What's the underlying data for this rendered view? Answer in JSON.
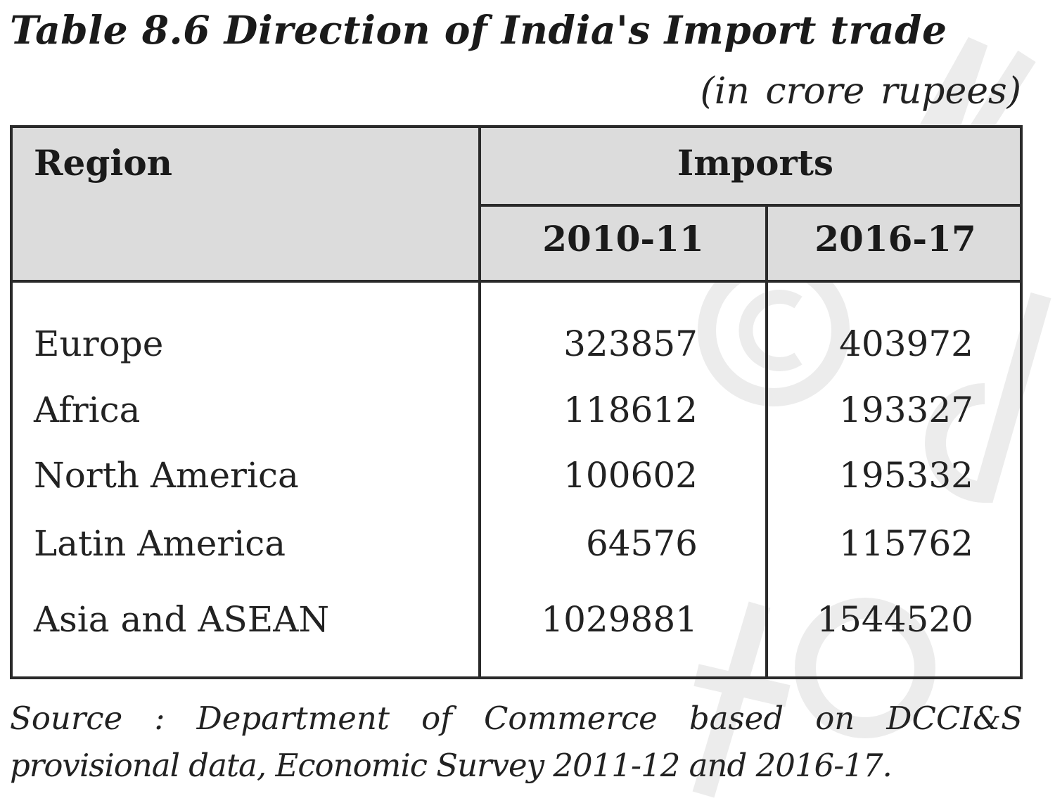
{
  "title": "Table 8.6 Direction of India's Import trade",
  "units": "(in crore rupees)",
  "table": {
    "header": {
      "region": "Region",
      "imports": "Imports",
      "years": [
        "2010-11",
        "2016-17"
      ]
    },
    "rows": [
      {
        "region": "Europe",
        "v1": "323857",
        "v2": "403972"
      },
      {
        "region": "Africa",
        "v1": "118612",
        "v2": "193327"
      },
      {
        "region": "North America",
        "v1": "100602",
        "v2": "195332"
      },
      {
        "region": "Latin America",
        "v1": "64576",
        "v2": "115762"
      },
      {
        "region": "Asia and ASEAN",
        "v1": "1029881",
        "v2": "1544520"
      }
    ]
  },
  "source": {
    "line1": "Source : Department of Commerce based on DCCI&S",
    "line2": "provisional data, Economic Survey 2011-12 and 2016-17."
  },
  "watermark": {
    "copyright_symbol": "©",
    "color": "#e9e9e9"
  }
}
